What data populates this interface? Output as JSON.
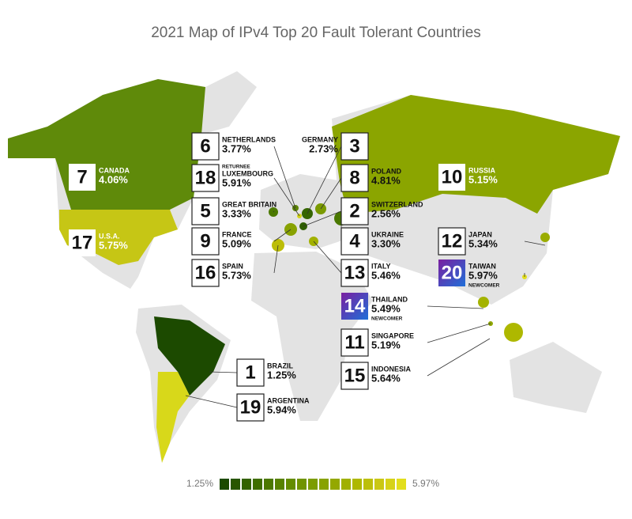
{
  "title": "2021 Map of IPv4 Top 20 Fault Tolerant Countries",
  "countries": [
    {
      "rank": 1,
      "name": "BRAZIL",
      "value": "1.25%",
      "color": "#1c4a00"
    },
    {
      "rank": 2,
      "name": "SWITZERLAND",
      "value": "2.56%",
      "color": "#2f5f00"
    },
    {
      "rank": 3,
      "name": "GERMANY",
      "value": "2.73%",
      "color": "#366600"
    },
    {
      "rank": 4,
      "name": "UKRAINE",
      "value": "3.30%",
      "color": "#4a7800"
    },
    {
      "rank": 5,
      "name": "GREAT BRITAIN",
      "value": "3.33%",
      "color": "#4c7a00"
    },
    {
      "rank": 6,
      "name": "NETHERLANDS",
      "value": "3.77%",
      "color": "#5c8500"
    },
    {
      "rank": 7,
      "name": "CANADA",
      "value": "4.06%",
      "color": "#5f8a0a"
    },
    {
      "rank": 8,
      "name": "POLAND",
      "value": "4.81%",
      "color": "#7a9a00"
    },
    {
      "rank": 9,
      "name": "FRANCE",
      "value": "5.09%",
      "color": "#88a200"
    },
    {
      "rank": 10,
      "name": "RUSSIA",
      "value": "5.15%",
      "color": "#8ba500"
    },
    {
      "rank": 11,
      "name": "SINGAPORE",
      "value": "5.19%",
      "color": "#8ea600"
    },
    {
      "rank": 12,
      "name": "JAPAN",
      "value": "5.34%",
      "color": "#9aac00"
    },
    {
      "rank": 13,
      "name": "ITALY",
      "value": "5.46%",
      "color": "#a2b100"
    },
    {
      "rank": 14,
      "name": "THAILAND",
      "value": "5.49%",
      "color": "#a4b300",
      "note": "NEWCOMER"
    },
    {
      "rank": 15,
      "name": "INDONESIA",
      "value": "5.64%",
      "color": "#aeb800"
    },
    {
      "rank": 16,
      "name": "SPAIN",
      "value": "5.73%",
      "color": "#bcbd08"
    },
    {
      "rank": 17,
      "name": "U.S.A.",
      "value": "5.75%",
      "color": "#c6c615"
    },
    {
      "rank": 18,
      "name": "LUXEMBOURG",
      "value": "5.91%",
      "color": "#d4d418",
      "note": "RETURNEE"
    },
    {
      "rank": 19,
      "name": "ARGENTINA",
      "value": "5.94%",
      "color": "#d8d81a"
    },
    {
      "rank": 20,
      "name": "TAIWAN",
      "value": "5.97%",
      "color": "#e2de1c",
      "note": "NEWCOMER"
    }
  ],
  "legend": {
    "min": "1.25%",
    "max": "5.97%",
    "colors": [
      "#1c4a00",
      "#285600",
      "#346200",
      "#406e00",
      "#4c7800",
      "#588200",
      "#648c00",
      "#709400",
      "#7c9c00",
      "#88a200",
      "#94a800",
      "#a0b000",
      "#aeb800",
      "#bcbf0a",
      "#cac714",
      "#d6d218",
      "#e2de1c"
    ]
  }
}
